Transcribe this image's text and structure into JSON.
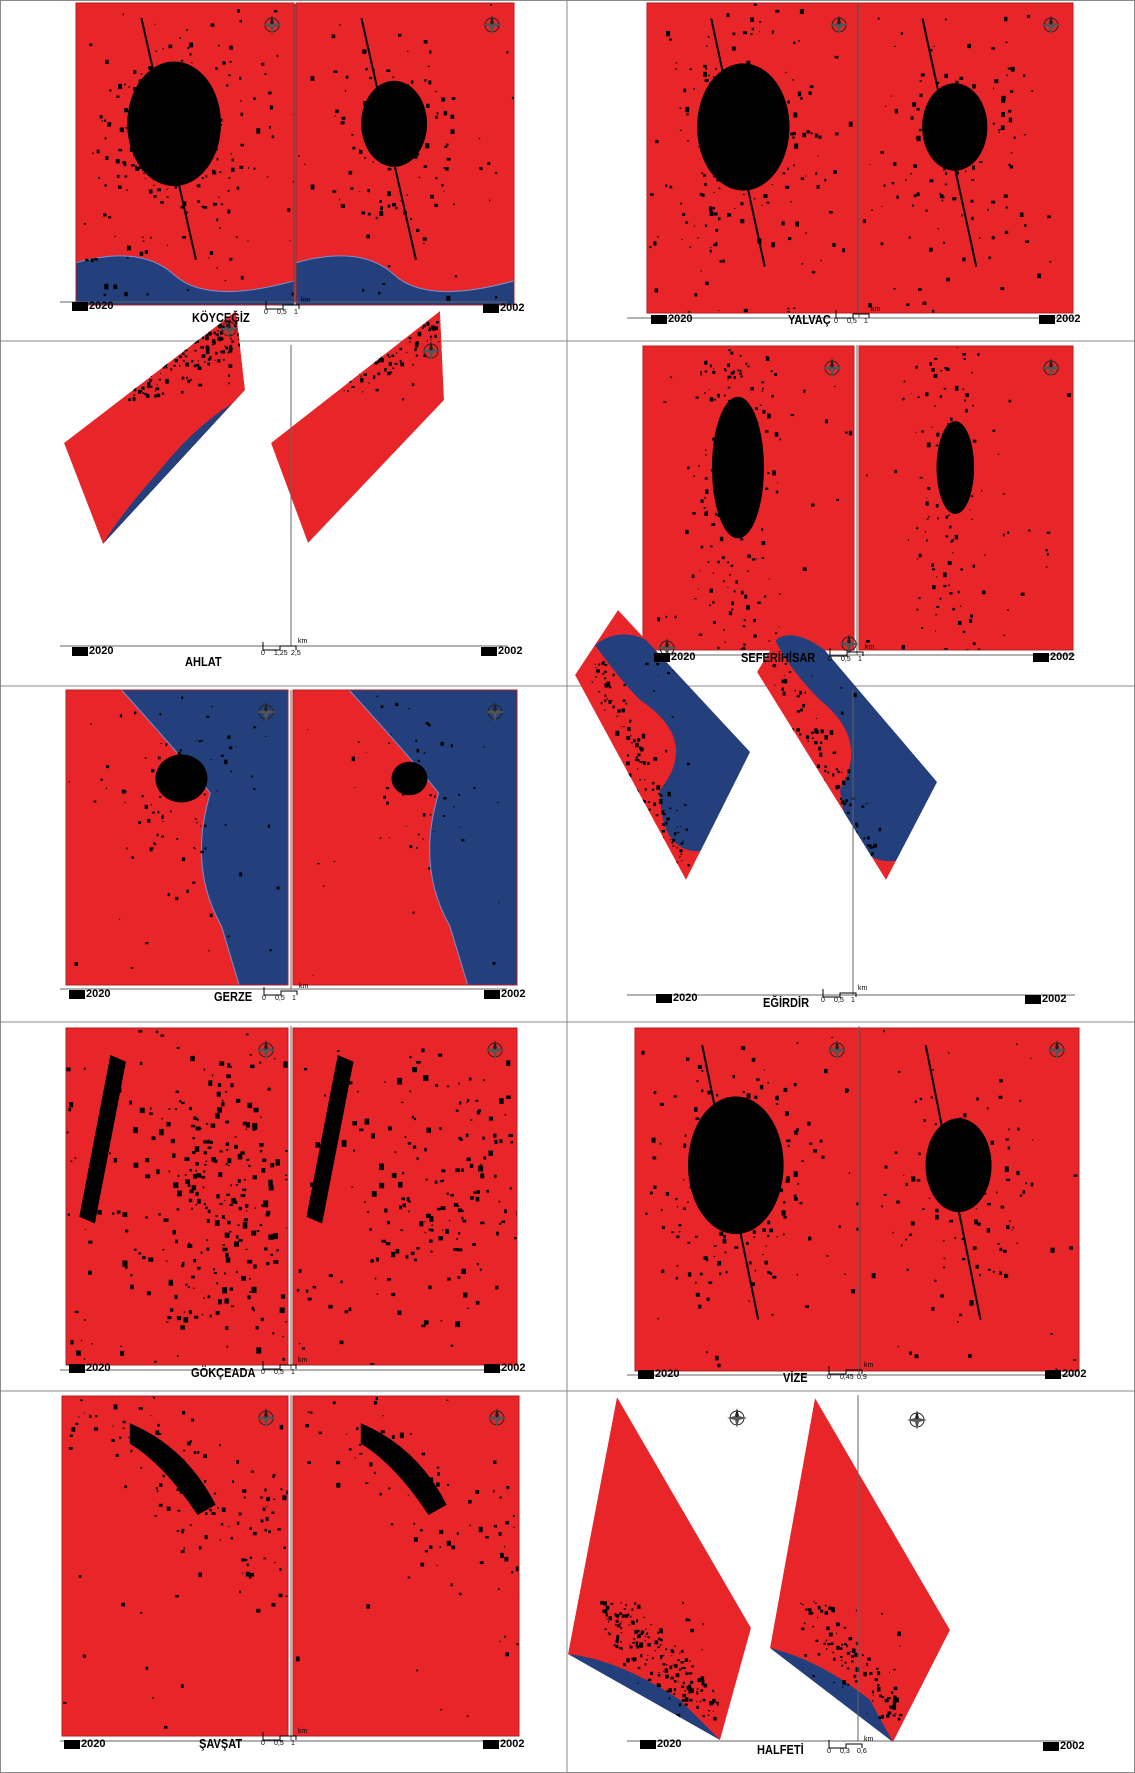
{
  "figure": {
    "colors": {
      "urban": "#000000",
      "non_urban": "#e8262a",
      "water": "#233f7c",
      "water_alt": "#1a5fa8",
      "grid": "#8a8a8a"
    },
    "icons": [
      "north-arrow-icon"
    ],
    "legend": {
      "year_new": "2020",
      "year_old": "2002"
    },
    "panels": [
      {
        "id": "koycegiz",
        "name": "KÖYCEĞİZ",
        "scale": [
          "0",
          "0,5",
          "1"
        ],
        "unit": "km",
        "year_left": "2020",
        "year_right": "2002"
      },
      {
        "id": "yalvac",
        "name": "YALVAÇ",
        "scale": [
          "0",
          "0,5",
          "1"
        ],
        "unit": "km",
        "year_left": "2020",
        "year_right": "2002"
      },
      {
        "id": "ahlat",
        "name": "AHLAT",
        "scale": [
          "0",
          "1,25",
          "2,5"
        ],
        "unit": "km",
        "year_left": "2020",
        "year_right": "2002"
      },
      {
        "id": "seferihisar",
        "name": "SEFERİHİSAR",
        "scale": [
          "0",
          "0,5",
          "1"
        ],
        "unit": "km",
        "year_left": "2020",
        "year_right": "2002"
      },
      {
        "id": "gerze",
        "name": "GERZE",
        "scale": [
          "0",
          "0,5",
          "1"
        ],
        "unit": "km",
        "year_left": "2020",
        "year_right": "2002"
      },
      {
        "id": "egirdir",
        "name": "EĞİRDİR",
        "scale": [
          "0",
          "0,5",
          "1"
        ],
        "unit": "km",
        "year_left": "2020",
        "year_right": "2002"
      },
      {
        "id": "gokceada",
        "name": "GÖKÇEADA",
        "scale": [
          "0",
          "0,5",
          "1"
        ],
        "unit": "km",
        "year_left": "2020",
        "year_right": "2002"
      },
      {
        "id": "vize",
        "name": "VİZE",
        "scale": [
          "0",
          "0,45",
          "0,9"
        ],
        "unit": "km",
        "year_left": "2020",
        "year_right": "2002"
      },
      {
        "id": "savsat",
        "name": "ŞAVŞAT",
        "scale": [
          "0",
          "0,5",
          "1"
        ],
        "unit": "km",
        "year_left": "2020",
        "year_right": "2002"
      },
      {
        "id": "halfeti",
        "name": "HALFETİ",
        "scale": [
          "0",
          "0,3",
          "0,6"
        ],
        "unit": "km",
        "year_left": "2020",
        "year_right": "2002"
      }
    ]
  }
}
